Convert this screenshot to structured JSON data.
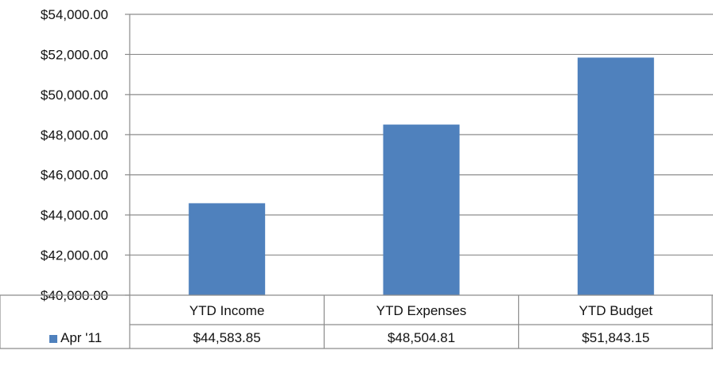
{
  "chart_data": {
    "type": "bar",
    "title": "",
    "xlabel": "",
    "ylabel": "",
    "categories": [
      "YTD Income",
      "YTD Expenses",
      "YTD Budget"
    ],
    "series": [
      {
        "name": "Apr '11",
        "values": [
          44583.85,
          48504.81,
          51843.15
        ],
        "value_labels": [
          "$44,583.85",
          "$48,504.81",
          "$51,843.15"
        ],
        "color": "#4f81bd"
      }
    ],
    "ylim": [
      40000,
      54000
    ],
    "yticks": [
      40000,
      42000,
      44000,
      46000,
      48000,
      50000,
      52000,
      54000
    ],
    "ytick_labels": [
      "$40,000.00",
      "$42,000.00",
      "$44,000.00",
      "$46,000.00",
      "$48,000.00",
      "$50,000.00",
      "$52,000.00",
      "$54,000.00"
    ],
    "grid": true,
    "legend": "data-table-left",
    "data_table": true
  }
}
